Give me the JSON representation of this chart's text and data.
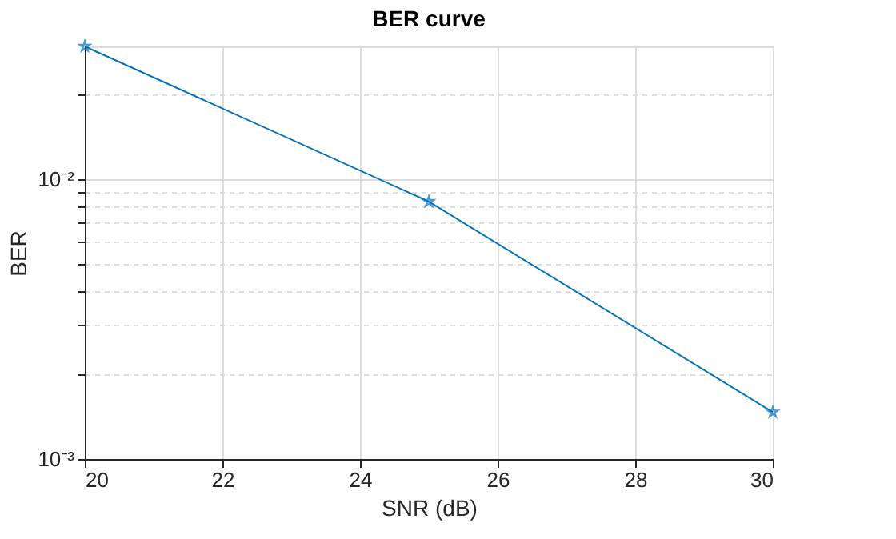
{
  "chart_data": {
    "type": "line",
    "title": "BER curve",
    "xlabel": "SNR (dB)",
    "ylabel": "BER",
    "x": [
      20,
      25,
      30
    ],
    "series": [
      {
        "color": "#0072bd",
        "values": [
          0.0297,
          0.0083,
          0.00147
        ]
      }
    ],
    "log": "y",
    "xlim": [
      20,
      30
    ],
    "xticks": [
      20,
      22,
      24,
      26,
      28,
      30
    ],
    "ylim": [
      0.001,
      0.0297
    ],
    "yticks": [
      {
        "value": 0.001,
        "label": "10⁻³"
      },
      {
        "value": 0.002,
        "label": null
      },
      {
        "value": 0.003,
        "label": null
      },
      {
        "value": 0.004,
        "label": null
      },
      {
        "value": 0.005,
        "label": null
      },
      {
        "value": 0.006,
        "label": null
      },
      {
        "value": 0.007,
        "label": null
      },
      {
        "value": 0.008,
        "label": null
      },
      {
        "value": 0.009,
        "label": null
      },
      {
        "value": 0.01,
        "label": "10⁻²"
      },
      {
        "value": 0.02,
        "label": null
      }
    ],
    "grid": true,
    "marker": "star",
    "line_style": "solid"
  }
}
